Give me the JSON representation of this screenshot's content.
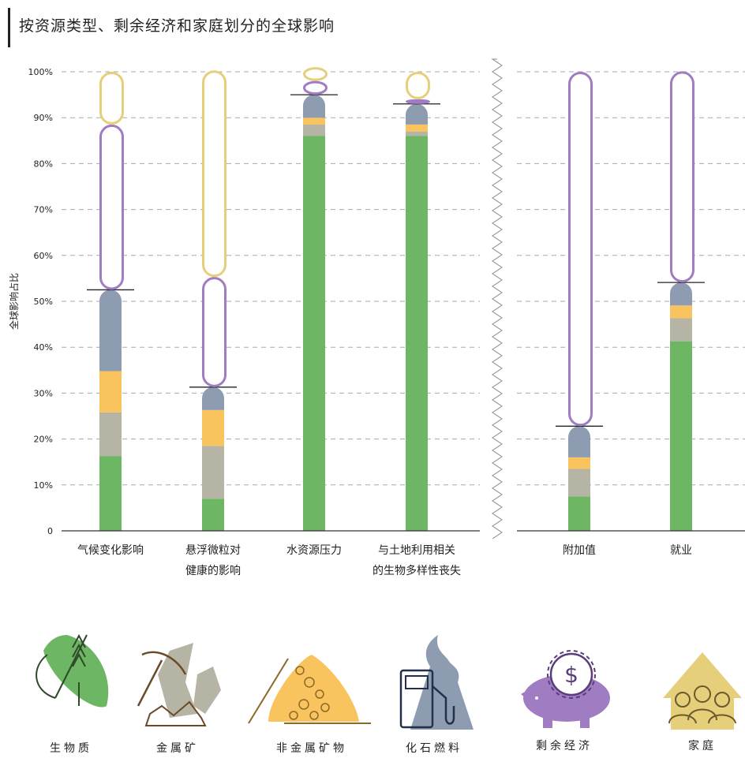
{
  "title": "按资源类型、剩余经济和家庭划分的全球影响",
  "chart_data": {
    "type": "bar",
    "stacked": true,
    "ylabel": "全球影响占比",
    "ylim": [
      0,
      100
    ],
    "yticks": [
      "0",
      "10%",
      "20%",
      "30%",
      "40%",
      "50%",
      "60%",
      "70%",
      "80%",
      "90%",
      "100%"
    ],
    "ytick_values": [
      0,
      10,
      20,
      30,
      40,
      50,
      60,
      70,
      80,
      90,
      100
    ],
    "grid": "horizontal-dashed",
    "axis_break_between_groups": true,
    "groups": [
      {
        "name": "impacts",
        "categories": [
          {
            "label_lines": [
              "气候变化影响"
            ]
          },
          {
            "label_lines": [
              "悬浮微粒对",
              "健康的影响"
            ]
          },
          {
            "label_lines": [
              "水资源压力"
            ]
          },
          {
            "label_lines": [
              "与土地利用相关",
              "的生物多样性丧失"
            ]
          }
        ]
      },
      {
        "name": "economy",
        "categories": [
          {
            "label_lines": [
              "附加值"
            ]
          },
          {
            "label_lines": [
              "就业"
            ]
          }
        ]
      }
    ],
    "series": [
      {
        "name": "生物质",
        "color": "#6db663",
        "style": "filled",
        "values": [
          16.3,
          7,
          86,
          86,
          7.5,
          41.3
        ]
      },
      {
        "name": "金属矿",
        "color": "#b6b4a4",
        "style": "filled",
        "values": [
          9.5,
          11.5,
          2.5,
          1,
          6,
          5
        ]
      },
      {
        "name": "非金属矿物",
        "color": "#f9c35e",
        "style": "filled",
        "values": [
          9,
          7.8,
          1.5,
          1.5,
          2.5,
          2.8
        ]
      },
      {
        "name": "化石燃料",
        "color": "#8e9cb2",
        "style": "filled",
        "values": [
          17.7,
          5,
          5,
          4.5,
          6.8,
          5
        ]
      },
      {
        "name": "剩余经济",
        "color": "#a07cc2",
        "style": "outline",
        "values": [
          36,
          24,
          3,
          1,
          77.2,
          46
        ]
      },
      {
        "name": "家庭",
        "color": "#e6cf7b",
        "style": "outline",
        "values": [
          11.5,
          45,
          3,
          6,
          0,
          0
        ]
      }
    ],
    "legend_placement": "bottom"
  },
  "legend": [
    {
      "label": "生物质",
      "icon": "biomass-icon",
      "color": "#6db663"
    },
    {
      "label": "金属矿",
      "icon": "metal-ore-icon",
      "color": "#b6b4a4"
    },
    {
      "label": "非金属矿物",
      "icon": "non-metallic-minerals-icon",
      "color": "#f9c35e"
    },
    {
      "label": "化石燃料",
      "icon": "fossil-fuel-icon",
      "color": "#8e9cb2"
    },
    {
      "label": "剩余经济",
      "icon": "rest-of-economy-icon",
      "color": "#a07cc2"
    },
    {
      "label": "家庭",
      "icon": "household-icon",
      "color": "#e6cf7b"
    }
  ]
}
